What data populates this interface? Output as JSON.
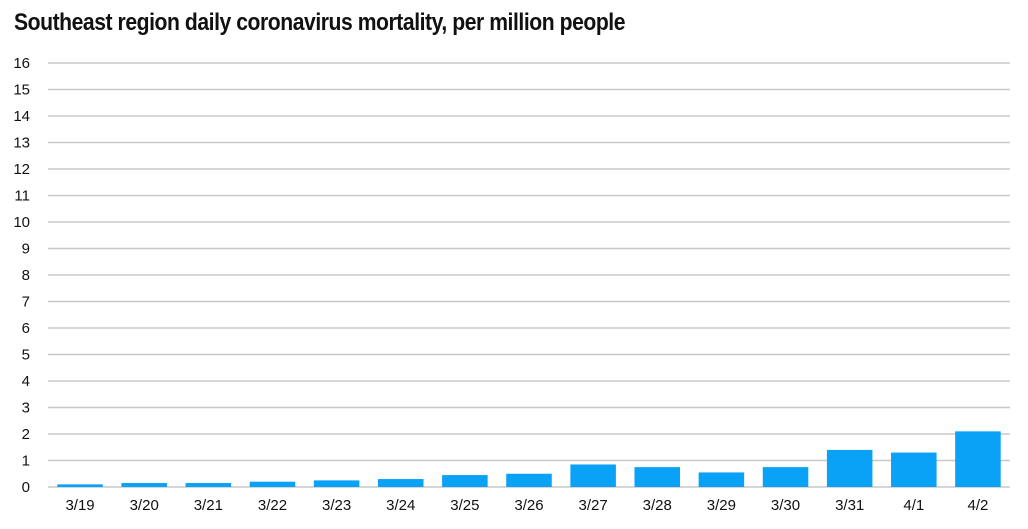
{
  "chart_data": {
    "type": "bar",
    "title": "Southeast region daily coronavirus mortality, per million people",
    "xlabel": "",
    "ylabel": "",
    "categories": [
      "3/19",
      "3/20",
      "3/21",
      "3/22",
      "3/23",
      "3/24",
      "3/25",
      "3/26",
      "3/27",
      "3/28",
      "3/29",
      "3/30",
      "3/31",
      "4/1",
      "4/2"
    ],
    "values": [
      0.1,
      0.15,
      0.15,
      0.2,
      0.25,
      0.3,
      0.45,
      0.5,
      0.85,
      0.75,
      0.55,
      0.75,
      1.4,
      1.3,
      2.1
    ],
    "ylim": [
      0,
      16
    ],
    "yticks": [
      "0",
      "1",
      "2",
      "3",
      "4",
      "5",
      "6",
      "7",
      "8",
      "9",
      "10",
      "11",
      "12",
      "13",
      "14",
      "15",
      "16"
    ],
    "grid": true,
    "legend": "none",
    "bar_color": "#0aa2f7",
    "grid_color": "#c8c8c8"
  }
}
